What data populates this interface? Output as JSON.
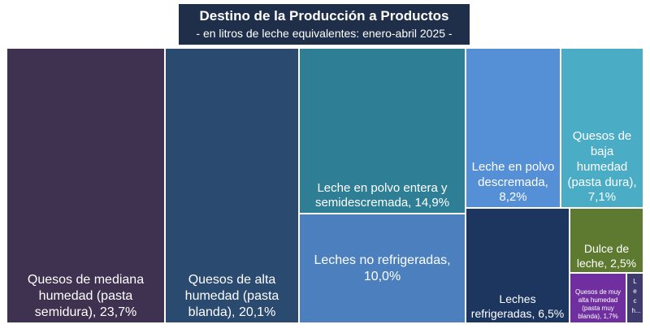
{
  "title": "Destino de la Producción a Productos",
  "subtitle": "- en litros de leche equivalentes: enero-abril 2025 -",
  "chart_data": {
    "type": "treemap",
    "unit": "%",
    "items": [
      {
        "label": "Quesos de mediana humedad (pasta semidura), 23,7%",
        "name": "Quesos de mediana humedad (pasta semidura)",
        "value": 23.7,
        "color": "#3f3250"
      },
      {
        "label": "Quesos de alta humedad (pasta blanda), 20,1%",
        "name": "Quesos de alta humedad (pasta blanda)",
        "value": 20.1,
        "color": "#2b4a6f"
      },
      {
        "label": "Leche en polvo entera y semidescremada, 14,9%",
        "name": "Leche en polvo entera y semidescremada",
        "value": 14.9,
        "color": "#2e7f96"
      },
      {
        "label": "Leches no refrigeradas, 10,0%",
        "name": "Leches no refrigeradas",
        "value": 10.0,
        "color": "#4b7fbd"
      },
      {
        "label": "Leche en polvo descremada, 8,2%",
        "name": "Leche en polvo descremada",
        "value": 8.2,
        "color": "#5590d6"
      },
      {
        "label": "Quesos de baja humedad (pasta dura), 7,1%",
        "name": "Quesos de baja humedad (pasta dura)",
        "value": 7.1,
        "color": "#4bacc6"
      },
      {
        "label": "Leches refrigeradas, 6,5%",
        "name": "Leches refrigeradas",
        "value": 6.5,
        "color": "#1d3660"
      },
      {
        "label": "Dulce de leche, 2,5%",
        "name": "Dulce de leche",
        "value": 2.5,
        "color": "#5e7a30"
      },
      {
        "label": "Quesos de muy alta humedad (pasta muy blanda), 1,7%",
        "name": "Quesos de muy alta humedad (pasta muy blanda)",
        "value": 1.7,
        "color": "#6f2f9f"
      },
      {
        "label": "Lech...",
        "name": "Leche...",
        "value": 0.5,
        "color": "#3f3b6e"
      }
    ]
  }
}
